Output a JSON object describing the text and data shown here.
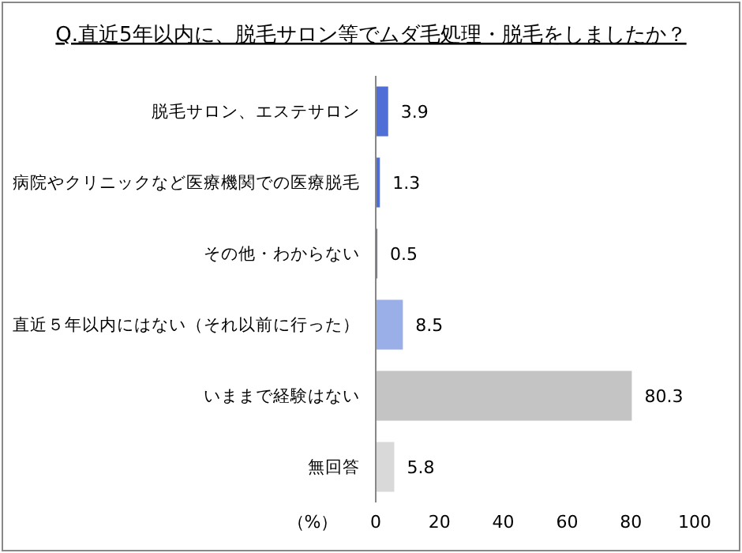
{
  "chart_data": {
    "type": "bar",
    "orientation": "horizontal",
    "title": "Q.直近5年以内に、脱毛サロン等でムダ毛処理・脱毛をしましたか？",
    "xlabel": "（%）",
    "categories": [
      "脱毛サロン、エステサロン",
      "病院やクリニックなど医療機関での医療脱毛",
      "その他・わからない",
      "直近５年以内にはない（それ以前に行った）",
      "いままで経験はない",
      "無回答"
    ],
    "values": [
      3.9,
      1.3,
      0.5,
      8.5,
      80.3,
      5.8
    ],
    "colors": [
      "#4f6fd6",
      "#4f6fd6",
      "#4f6fd6",
      "#9aaee8",
      "#c4c4c4",
      "#d9d9d9"
    ],
    "xlim": [
      0,
      100
    ],
    "xticks": [
      0,
      20,
      40,
      60,
      80,
      100
    ],
    "grid": false,
    "data_labels": true
  }
}
